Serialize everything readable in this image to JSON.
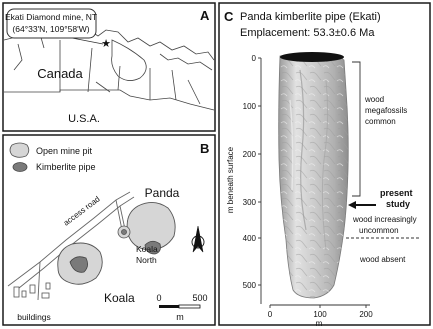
{
  "panel_a": {
    "letter": "A",
    "title_line1": "Ekati Diamond mine, NT",
    "title_line2": "(64°33'N, 109°58'W)",
    "country_label": "Canada",
    "usa_label": "U.S.A."
  },
  "panel_b": {
    "letter": "B",
    "legend": {
      "pit_label": "Open mine pit",
      "kimberlite_label": "Kimberlite pipe"
    },
    "panda_label": "Panda",
    "access_road_label": "access road",
    "koala_north_line1": "Koala",
    "koala_north_line2": "North",
    "koala_label": "Koala",
    "buildings_label": "buildings",
    "north_arrow_letter": "N",
    "scale": {
      "zero": "0",
      "max": "500",
      "unit": "m"
    }
  },
  "panel_c": {
    "letter": "C",
    "title_line1": "Panda kimberlite pipe (Ekati)",
    "title_line2": "Emplacement: 53.3±0.6 Ma",
    "y_axis_label": "m beneath surface",
    "x_axis_label": "m",
    "y_ticks": [
      "0",
      "100",
      "200",
      "300",
      "400",
      "500"
    ],
    "x_ticks": [
      "0",
      "100",
      "200"
    ],
    "annotations": {
      "wood_common_line1": "wood",
      "wood_common_line2": "megafossils",
      "wood_common_line3": "common",
      "present_study_line1": "present",
      "present_study_line2": "study",
      "increasingly_uncommon": "wood increasingly",
      "uncommon": "uncommon",
      "wood_absent": "wood absent"
    }
  },
  "colors": {
    "pit_fill": "#d6d6d6",
    "kimberlite_fill": "#7a7a7a",
    "pipe_body": "#c4c4c4",
    "pipe_top": "#111111",
    "border": "#1a1a1a"
  }
}
